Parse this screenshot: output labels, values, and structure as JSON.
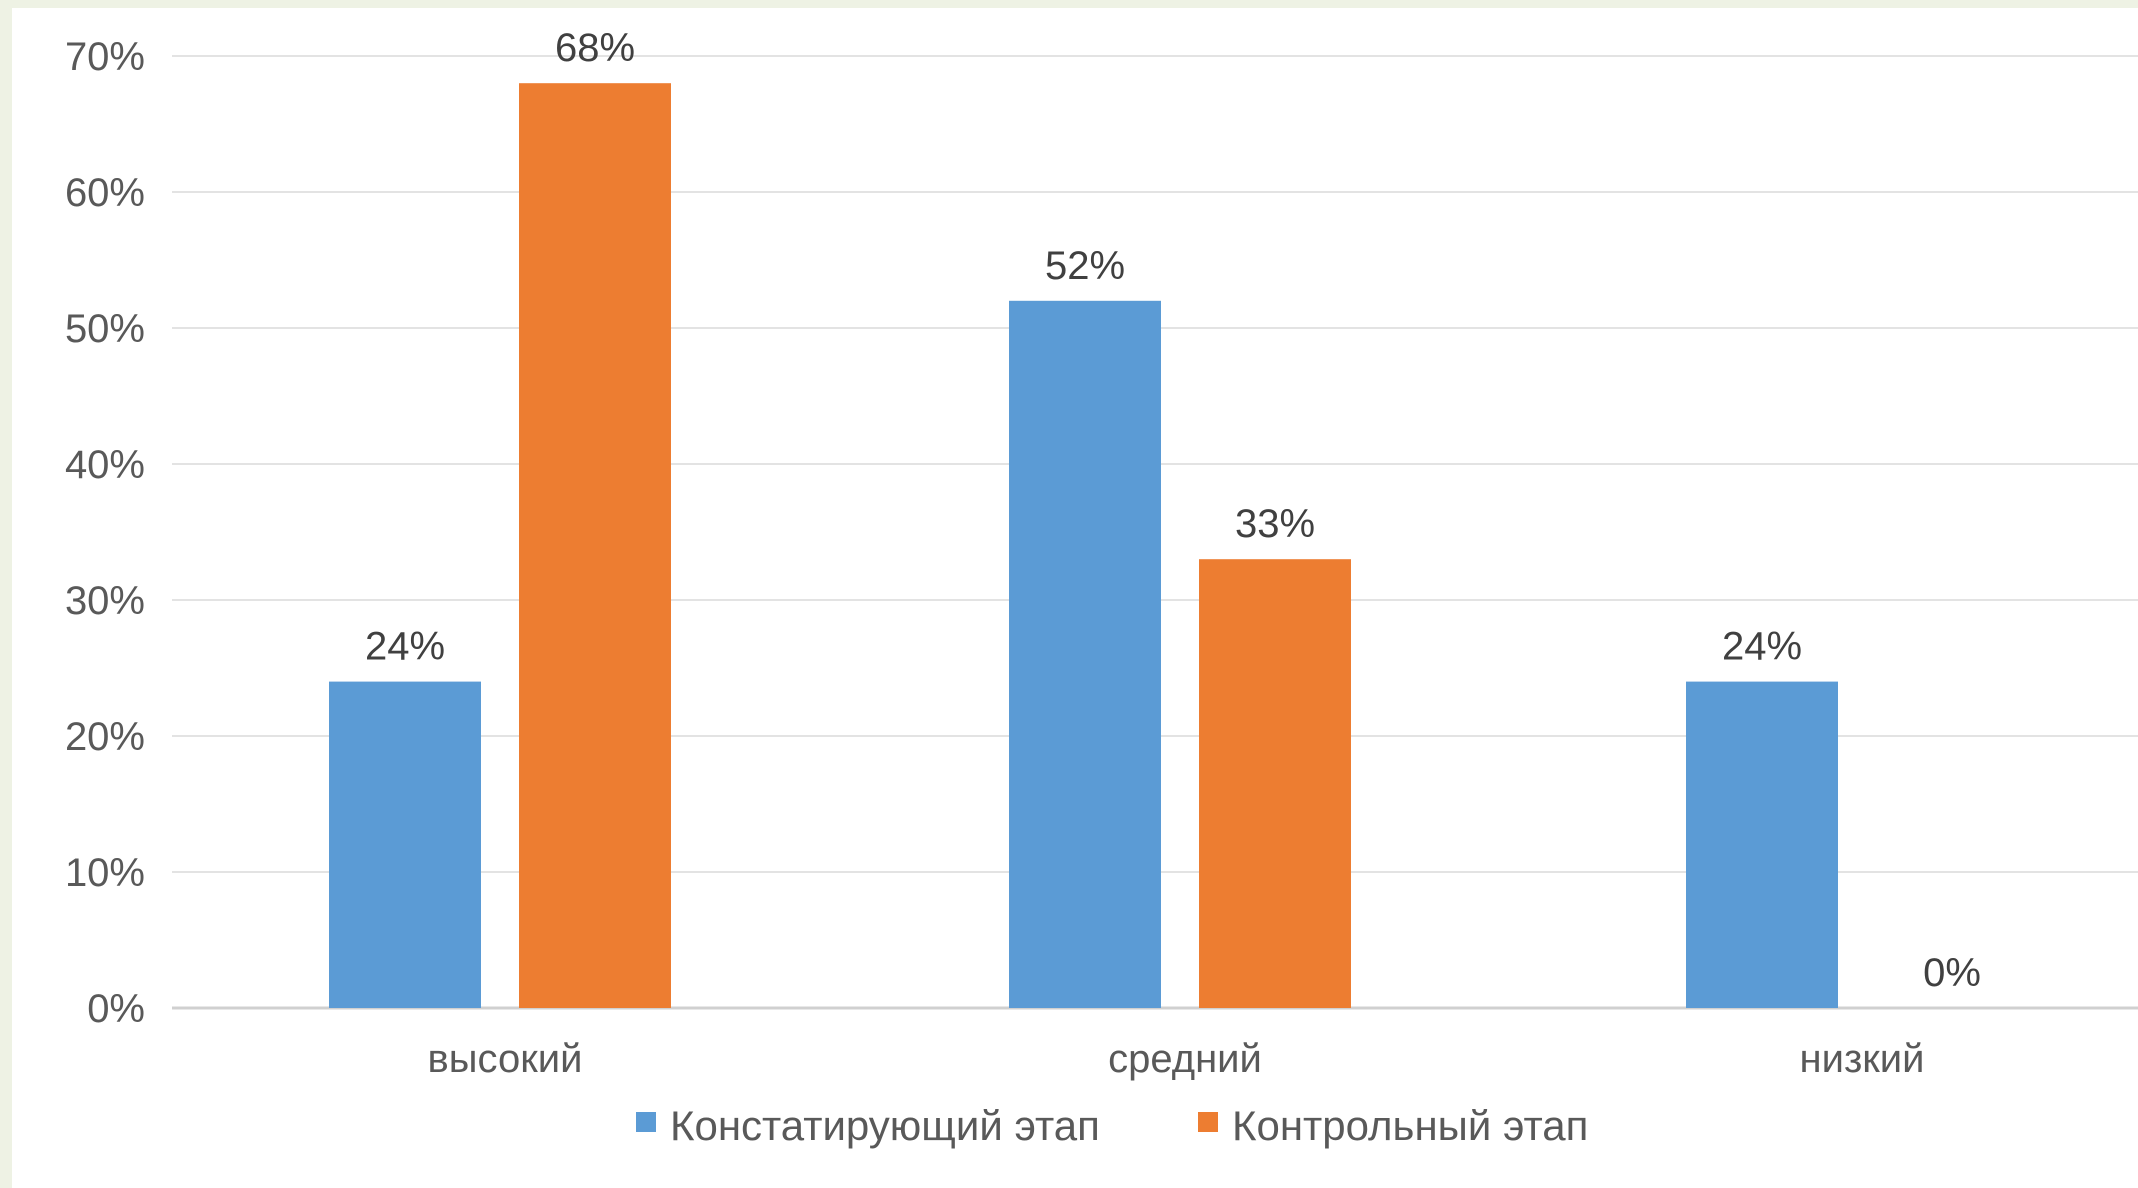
{
  "chart_data": {
    "type": "bar",
    "categories": [
      "высокий",
      "средний",
      "низкий"
    ],
    "series": [
      {
        "name": "Констатирующий этап",
        "values": [
          24,
          52,
          24
        ],
        "color": "#5b9bd5"
      },
      {
        "name": "Контрольный этап",
        "values": [
          68,
          33,
          0
        ],
        "color": "#ed7d31"
      }
    ],
    "ylim": [
      0,
      70
    ],
    "yticks": [
      0,
      10,
      20,
      30,
      40,
      50,
      60,
      70
    ],
    "tick_suffix": "%",
    "data_label_suffix": "%",
    "grid": true,
    "legend_position": "bottom"
  }
}
